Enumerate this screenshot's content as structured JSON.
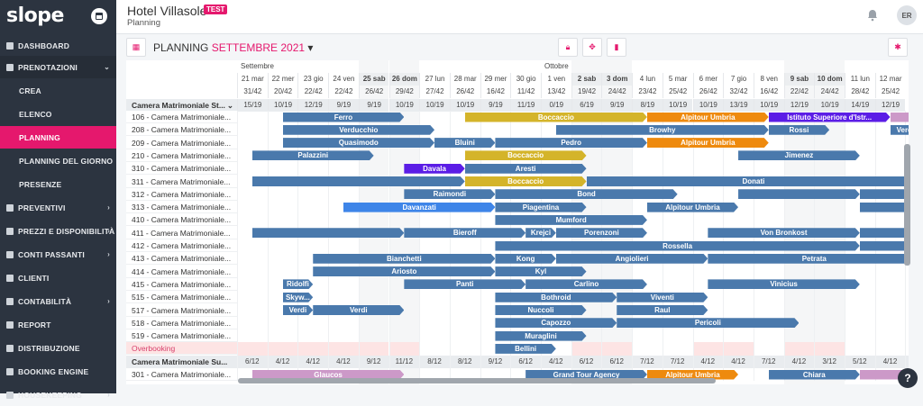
{
  "app": {
    "logo": "slope"
  },
  "sidebar": {
    "items": [
      {
        "label": "DASHBOARD",
        "icon": "dashboard-icon"
      },
      {
        "label": "PRENOTAZIONI",
        "icon": "bookings-icon",
        "open": true
      },
      {
        "label": "CREA",
        "sub": true
      },
      {
        "label": "ELENCO",
        "sub": true
      },
      {
        "label": "PLANNING",
        "sub": true,
        "active": true
      },
      {
        "label": "PLANNING DEL GIORNO",
        "sub": true
      },
      {
        "label": "PRESENZE",
        "sub": true
      },
      {
        "label": "PREVENTIVI",
        "icon": "quotes-icon",
        "chev": true
      },
      {
        "label": "PREZZI E DISPONIBILITÀ",
        "icon": "prices-icon",
        "chev": true
      },
      {
        "label": "CONTI PASSANTI",
        "icon": "accounts-icon",
        "chev": true
      },
      {
        "label": "CLIENTI",
        "icon": "clients-icon"
      },
      {
        "label": "CONTABILITÀ",
        "icon": "accounting-icon",
        "chev": true
      },
      {
        "label": "REPORT",
        "icon": "report-icon"
      },
      {
        "label": "DISTRIBUZIONE",
        "icon": "distribution-icon"
      },
      {
        "label": "BOOKING ENGINE",
        "icon": "booking-engine-icon"
      },
      {
        "label": "HOUSEKEEPING",
        "icon": "housekeeping-icon",
        "chev": true
      }
    ]
  },
  "header": {
    "hotel": "Hotel Villasole",
    "badge": "TEST",
    "subtitle": "Planning",
    "avatar": "ER"
  },
  "toolbar": {
    "title": "PLANNING",
    "month": "SETTEMBRE 2021"
  },
  "months": {
    "sept": "Settembre",
    "oct": "Ottobre"
  },
  "days": [
    {
      "d": "21 mar",
      "o": "31/42",
      "a": "15/19"
    },
    {
      "d": "22 mer",
      "o": "20/42",
      "a": "10/19"
    },
    {
      "d": "23 gio",
      "o": "22/42",
      "a": "12/19"
    },
    {
      "d": "24 ven",
      "o": "22/42",
      "a": "9/19"
    },
    {
      "d": "25 sab",
      "o": "26/42",
      "a": "9/19",
      "we": true
    },
    {
      "d": "26 dom",
      "o": "29/42",
      "a": "10/19",
      "we": true
    },
    {
      "d": "27 lun",
      "o": "27/42",
      "a": "10/19"
    },
    {
      "d": "28 mar",
      "o": "26/42",
      "a": "10/19"
    },
    {
      "d": "29 mer",
      "o": "16/42",
      "a": "9/19"
    },
    {
      "d": "30 gio",
      "o": "11/42",
      "a": "11/19"
    },
    {
      "d": "1 ven",
      "o": "13/42",
      "a": "0/19"
    },
    {
      "d": "2 sab",
      "o": "19/42",
      "a": "6/19",
      "we": true
    },
    {
      "d": "3 dom",
      "o": "24/42",
      "a": "9/19",
      "we": true
    },
    {
      "d": "4 lun",
      "o": "23/42",
      "a": "8/19"
    },
    {
      "d": "5 mar",
      "o": "25/42",
      "a": "10/19"
    },
    {
      "d": "6 mer",
      "o": "26/42",
      "a": "10/19"
    },
    {
      "d": "7 gio",
      "o": "32/42",
      "a": "13/19"
    },
    {
      "d": "8 ven",
      "o": "16/42",
      "a": "10/19"
    },
    {
      "d": "9 sab",
      "o": "22/42",
      "a": "12/19",
      "we": true
    },
    {
      "d": "10 dom",
      "o": "24/42",
      "a": "10/19",
      "we": true
    },
    {
      "d": "11 lun",
      "o": "28/42",
      "a": "14/19"
    },
    {
      "d": "12 mar",
      "o": "25/42",
      "a": "12/19"
    }
  ],
  "category1": "Camera Matrimoniale St...",
  "category2": "Camera Matrimoniale Su...",
  "overbooking": "Overbooking",
  "rooms": [
    "106 - Camera Matrimoniale...",
    "208 - Camera Matrimoniale...",
    "209 - Camera Matrimoniale...",
    "210 - Camera Matrimoniale...",
    "310 - Camera Matrimoniale...",
    "311 - Camera Matrimoniale...",
    "312 - Camera Matrimoniale...",
    "313 - Camera Matrimoniale...",
    "410 - Camera Matrimoniale...",
    "411 - Camera Matrimoniale...",
    "412 - Camera Matrimoniale...",
    "413 - Camera Matrimoniale...",
    "414 - Camera Matrimoniale...",
    "415 - Camera Matrimoniale...",
    "515 - Camera Matrimoniale...",
    "517 - Camera Matrimoniale...",
    "518 - Camera Matrimoniale...",
    "519 - Camera Matrimoniale..."
  ],
  "room2": "301 - Camera Matrimoniale...",
  "cat2_avail": [
    "6/12",
    "4/12",
    "4/12",
    "4/12",
    "9/12",
    "11/12",
    "8/12",
    "8/12",
    "9/12",
    "6/12",
    "4/12",
    "6/12",
    "6/12",
    "7/12",
    "7/12",
    "4/12",
    "4/12",
    "7/12",
    "4/12",
    "3/12",
    "5/12",
    "4/12"
  ],
  "colors": {
    "blue": "#4a79ac",
    "yellow": "#d4b42a",
    "orange": "#ee8a0e",
    "violet": "#5b1de6",
    "pink": "#cc99c8",
    "lblue": "#3e85e8",
    "accent": "#e5186d"
  },
  "bookings": [
    {
      "r": 0,
      "s": 1,
      "e": 5,
      "n": "Ferro",
      "c": "blue"
    },
    {
      "r": 0,
      "s": 7,
      "e": 13,
      "n": "Boccaccio",
      "c": "yellow"
    },
    {
      "r": 0,
      "s": 13,
      "e": 17,
      "n": "Alpitour Umbria",
      "c": "orange"
    },
    {
      "r": 0,
      "s": 17,
      "e": 21,
      "n": "Istituto Superiore d'Istr...",
      "c": "violet"
    },
    {
      "r": 0,
      "s": 21,
      "e": 22,
      "n": "",
      "c": "pink"
    },
    {
      "r": 1,
      "s": 1,
      "e": 6,
      "n": "Verducchio",
      "c": "blue"
    },
    {
      "r": 1,
      "s": 10,
      "e": 17,
      "n": "Browhy",
      "c": "blue"
    },
    {
      "r": 1,
      "s": 17,
      "e": 19,
      "n": "Rossi",
      "c": "blue"
    },
    {
      "r": 1,
      "s": 21,
      "e": 22,
      "n": "Verdi",
      "c": "blue"
    },
    {
      "r": 2,
      "s": 1,
      "e": 6,
      "n": "Quasimodo",
      "c": "blue"
    },
    {
      "r": 2,
      "s": 6,
      "e": 8,
      "n": "Bluini",
      "c": "blue"
    },
    {
      "r": 2,
      "s": 8,
      "e": 13,
      "n": "Pedro",
      "c": "blue"
    },
    {
      "r": 2,
      "s": 13,
      "e": 17,
      "n": "Alpitour Umbria",
      "c": "orange"
    },
    {
      "r": 3,
      "s": 0,
      "e": 4,
      "n": "Palazzini",
      "c": "blue"
    },
    {
      "r": 3,
      "s": 7,
      "e": 11,
      "n": "Boccaccio",
      "c": "yellow"
    },
    {
      "r": 3,
      "s": 16,
      "e": 20,
      "n": "Jimenez",
      "c": "blue"
    },
    {
      "r": 4,
      "s": 5,
      "e": 7,
      "n": "Davala",
      "c": "violet"
    },
    {
      "r": 4,
      "s": 7,
      "e": 11,
      "n": "Aresti",
      "c": "blue"
    },
    {
      "r": 5,
      "s": 0,
      "e": 7,
      "n": "",
      "c": "blue"
    },
    {
      "r": 5,
      "s": 7,
      "e": 11,
      "n": "Boccaccio",
      "c": "yellow"
    },
    {
      "r": 5,
      "s": 11,
      "e": 22,
      "n": "Donati",
      "c": "blue"
    },
    {
      "r": 6,
      "s": 5,
      "e": 8,
      "n": "Raimondi",
      "c": "blue"
    },
    {
      "r": 6,
      "s": 8,
      "e": 14,
      "n": "Bond",
      "c": "blue"
    },
    {
      "r": 6,
      "s": 16,
      "e": 20,
      "n": "",
      "c": "blue"
    },
    {
      "r": 6,
      "s": 20,
      "e": 22,
      "n": "",
      "c": "blue"
    },
    {
      "r": 7,
      "s": 3,
      "e": 8,
      "n": "Davanzati",
      "c": "lblue"
    },
    {
      "r": 7,
      "s": 8,
      "e": 11,
      "n": "Piagentina",
      "c": "blue"
    },
    {
      "r": 7,
      "s": 13,
      "e": 16,
      "n": "Alpitour Umbria",
      "c": "blue"
    },
    {
      "r": 7,
      "s": 20,
      "e": 22,
      "n": "",
      "c": "blue"
    },
    {
      "r": 8,
      "s": 8,
      "e": 13,
      "n": "Mumford",
      "c": "blue"
    },
    {
      "r": 9,
      "s": 0,
      "e": 5,
      "n": "",
      "c": "blue"
    },
    {
      "r": 9,
      "s": 5,
      "e": 9,
      "n": "Bieroff",
      "c": "blue"
    },
    {
      "r": 9,
      "s": 9,
      "e": 10,
      "n": "Krejci",
      "c": "blue"
    },
    {
      "r": 9,
      "s": 10,
      "e": 13,
      "n": "Porenzoni",
      "c": "blue"
    },
    {
      "r": 9,
      "s": 15,
      "e": 20,
      "n": "Von Bronkost",
      "c": "blue"
    },
    {
      "r": 9,
      "s": 20,
      "e": 22,
      "n": "",
      "c": "blue"
    },
    {
      "r": 10,
      "s": 8,
      "e": 20,
      "n": "Rossella",
      "c": "blue"
    },
    {
      "r": 10,
      "s": 20,
      "e": 22,
      "n": "",
      "c": "blue"
    },
    {
      "r": 11,
      "s": 2,
      "e": 8,
      "n": "Bianchetti",
      "c": "blue"
    },
    {
      "r": 11,
      "s": 8,
      "e": 10,
      "n": "Kong",
      "c": "blue"
    },
    {
      "r": 11,
      "s": 10,
      "e": 15,
      "n": "Angiolieri",
      "c": "blue"
    },
    {
      "r": 11,
      "s": 15,
      "e": 22,
      "n": "Petrata",
      "c": "blue"
    },
    {
      "r": 12,
      "s": 2,
      "e": 8,
      "n": "Ariosto",
      "c": "blue"
    },
    {
      "r": 12,
      "s": 8,
      "e": 11,
      "n": "Kyl",
      "c": "blue"
    },
    {
      "r": 13,
      "s": 1,
      "e": 2,
      "n": "Ridolfi",
      "c": "blue"
    },
    {
      "r": 13,
      "s": 5,
      "e": 9,
      "n": "Panti",
      "c": "blue"
    },
    {
      "r": 13,
      "s": 9,
      "e": 13,
      "n": "Carlino",
      "c": "blue"
    },
    {
      "r": 13,
      "s": 15,
      "e": 20,
      "n": "Vinicius",
      "c": "blue"
    },
    {
      "r": 14,
      "s": 1,
      "e": 2,
      "n": "Skyw...",
      "c": "blue"
    },
    {
      "r": 14,
      "s": 8,
      "e": 12,
      "n": "Bothroid",
      "c": "blue"
    },
    {
      "r": 14,
      "s": 12,
      "e": 15,
      "n": "Viventi",
      "c": "blue"
    },
    {
      "r": 15,
      "s": 1,
      "e": 2,
      "n": "Verdi",
      "c": "blue"
    },
    {
      "r": 15,
      "s": 2,
      "e": 5,
      "n": "Verdi",
      "c": "blue"
    },
    {
      "r": 15,
      "s": 8,
      "e": 11,
      "n": "Nuccoli",
      "c": "blue"
    },
    {
      "r": 15,
      "s": 12,
      "e": 15,
      "n": "Raul",
      "c": "blue"
    },
    {
      "r": 16,
      "s": 8,
      "e": 12,
      "n": "Capozzo",
      "c": "blue"
    },
    {
      "r": 16,
      "s": 12,
      "e": 18,
      "n": "Pericoli",
      "c": "blue"
    },
    {
      "r": 17,
      "s": 8,
      "e": 11,
      "n": "Muraglini",
      "c": "blue"
    },
    {
      "r": 18,
      "s": 8,
      "e": 10,
      "n": "Bellini",
      "c": "blue"
    },
    {
      "r": 20,
      "s": 0,
      "e": 5,
      "n": "Glaucos",
      "c": "pink"
    },
    {
      "r": 20,
      "s": 9,
      "e": 13,
      "n": "Grand Tour Agency",
      "c": "blue"
    },
    {
      "r": 20,
      "s": 13,
      "e": 16,
      "n": "Alpitour Umbria",
      "c": "orange"
    },
    {
      "r": 20,
      "s": 17,
      "e": 20,
      "n": "Chiara",
      "c": "blue"
    },
    {
      "r": 20,
      "s": 20,
      "e": 22,
      "n": "",
      "c": "pink"
    }
  ]
}
